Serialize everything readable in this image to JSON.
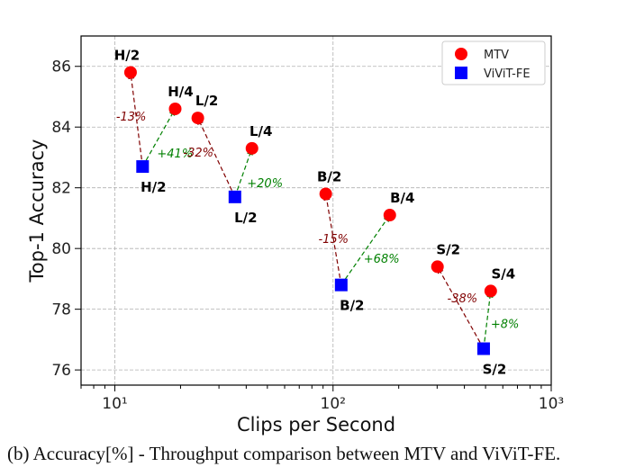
{
  "chart_data": {
    "type": "scatter",
    "xlabel": "Clips per Second",
    "ylabel": "Top-1 Accuracy",
    "xscale": "log",
    "xlim": [
      7,
      1000
    ],
    "ylim": [
      75.5,
      87
    ],
    "xticks": [
      10,
      100,
      1000
    ],
    "xtick_labels": [
      "10¹",
      "10²",
      "10³"
    ],
    "yticks": [
      76,
      78,
      80,
      82,
      84,
      86
    ],
    "ytick_labels": [
      "76",
      "78",
      "80",
      "82",
      "84",
      "86"
    ],
    "grid": true,
    "legend_placement": "top-right",
    "series": [
      {
        "name": "MTV",
        "marker": "circle",
        "color": "#ff0000",
        "points": [
          {
            "label": "H/2",
            "x": 11.8,
            "y": 85.8
          },
          {
            "label": "H/4",
            "x": 18.9,
            "y": 84.6
          },
          {
            "label": "L/2",
            "x": 24.0,
            "y": 84.3
          },
          {
            "label": "L/4",
            "x": 42.5,
            "y": 83.3
          },
          {
            "label": "B/2",
            "x": 92.6,
            "y": 81.8
          },
          {
            "label": "B/4",
            "x": 182,
            "y": 81.1
          },
          {
            "label": "S/2",
            "x": 301,
            "y": 79.4
          },
          {
            "label": "S/4",
            "x": 528,
            "y": 78.6
          }
        ]
      },
      {
        "name": "ViViT-FE",
        "marker": "square",
        "color": "#0000ff",
        "points": [
          {
            "label": "H/2",
            "x": 13.4,
            "y": 82.7
          },
          {
            "label": "L/2",
            "x": 35.5,
            "y": 81.7
          },
          {
            "label": "B/2",
            "x": 109,
            "y": 78.8
          },
          {
            "label": "S/2",
            "x": 490,
            "y": 76.7
          }
        ]
      }
    ],
    "arrows": [
      {
        "from": [
          13.4,
          82.7
        ],
        "to": [
          11.8,
          85.8
        ],
        "text": "-13%",
        "color": "#800000"
      },
      {
        "from": [
          13.4,
          82.7
        ],
        "to": [
          18.9,
          84.6
        ],
        "text": "+41%",
        "color": "#008000"
      },
      {
        "from": [
          35.5,
          81.7
        ],
        "to": [
          24.0,
          84.3
        ],
        "text": "-32%",
        "color": "#800000"
      },
      {
        "from": [
          35.5,
          81.7
        ],
        "to": [
          42.5,
          83.3
        ],
        "text": "+20%",
        "color": "#008000"
      },
      {
        "from": [
          109,
          78.8
        ],
        "to": [
          92.6,
          81.8
        ],
        "text": "-15%",
        "color": "#800000"
      },
      {
        "from": [
          109,
          78.8
        ],
        "to": [
          182,
          81.1
        ],
        "text": "+68%",
        "color": "#008000"
      },
      {
        "from": [
          490,
          76.7
        ],
        "to": [
          301,
          79.4
        ],
        "text": "-38%",
        "color": "#800000"
      },
      {
        "from": [
          490,
          76.7
        ],
        "to": [
          528,
          78.6
        ],
        "text": "+8%",
        "color": "#008000"
      }
    ]
  },
  "caption": "(b) Accuracy[%] - Throughput comparison between MTV and ViViT-FE."
}
